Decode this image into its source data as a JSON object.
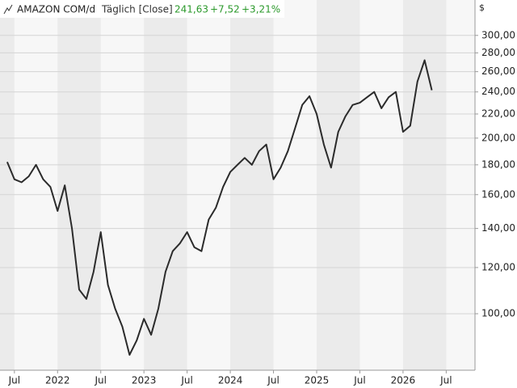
{
  "chart_data": {
    "type": "line",
    "title": "AMAZON COM/d",
    "subtitle": "Täglich [Close]",
    "annotations": [
      "241,63",
      "+7,52",
      "+3,21%"
    ],
    "y_unit": "$",
    "x": [
      "2021-06",
      "2021-07",
      "2021-08",
      "2021-09",
      "2021-10",
      "2021-11",
      "2021-12",
      "2022-01",
      "2022-02",
      "2022-03",
      "2022-04",
      "2022-05",
      "2022-06",
      "2022-07",
      "2022-08",
      "2022-09",
      "2022-10",
      "2022-11",
      "2022-12",
      "2023-01",
      "2023-02",
      "2023-03",
      "2023-04",
      "2023-05",
      "2023-06",
      "2023-07",
      "2023-08",
      "2023-09",
      "2023-10",
      "2023-11",
      "2023-12",
      "2024-01",
      "2024-02",
      "2024-03",
      "2024-04",
      "2024-05",
      "2024-06",
      "2024-07",
      "2024-08",
      "2024-09",
      "2024-10",
      "2024-11",
      "2024-12",
      "2025-01",
      "2025-02",
      "2025-03",
      "2025-04",
      "2025-05",
      "2025-06",
      "2025-07",
      "2025-08",
      "2025-09",
      "2025-10",
      "2025-11",
      "2025-12",
      "2026-01",
      "2026-02",
      "2026-03",
      "2026-04",
      "2026-05"
    ],
    "values": [
      182,
      170,
      168,
      172,
      180,
      170,
      165,
      150,
      166,
      140,
      110,
      106,
      118,
      138,
      112,
      102,
      95,
      85,
      90,
      98,
      92,
      102,
      118,
      128,
      132,
      138,
      130,
      128,
      145,
      152,
      165,
      175,
      180,
      185,
      180,
      190,
      195,
      170,
      178,
      190,
      208,
      228,
      236,
      220,
      195,
      178,
      205,
      218,
      228,
      230,
      235,
      240,
      225,
      235,
      240,
      205,
      210,
      250,
      272,
      241.63
    ],
    "color": "#2b2b2b",
    "log_y": true,
    "grid": true,
    "xlim": [
      "2021-05",
      "2026-11"
    ],
    "xticks": [
      {
        "value": "2021-07",
        "label": "Jul"
      },
      {
        "value": "2022-01",
        "label": "2022"
      },
      {
        "value": "2022-07",
        "label": "Jul"
      },
      {
        "value": "2023-01",
        "label": "2023"
      },
      {
        "value": "2023-07",
        "label": "Jul"
      },
      {
        "value": "2024-01",
        "label": "2024"
      },
      {
        "value": "2024-07",
        "label": "Jul"
      },
      {
        "value": "2025-01",
        "label": "2025"
      },
      {
        "value": "2025-07",
        "label": "Jul"
      },
      {
        "value": "2026-01",
        "label": "2026"
      },
      {
        "value": "2026-07",
        "label": "Jul"
      }
    ],
    "ylim": [
      80,
      345
    ],
    "yticks": [
      {
        "value": 100,
        "label": "100,00"
      },
      {
        "value": 120,
        "label": "120,00"
      },
      {
        "value": 140,
        "label": "140,00"
      },
      {
        "value": 160,
        "label": "160,00"
      },
      {
        "value": 180,
        "label": "180,00"
      },
      {
        "value": 200,
        "label": "200,00"
      },
      {
        "value": 220,
        "label": "220,00"
      },
      {
        "value": 240,
        "label": "240,00"
      },
      {
        "value": 260,
        "label": "260,00"
      },
      {
        "value": 280,
        "label": "280,00"
      },
      {
        "value": 300,
        "label": "300,00"
      }
    ]
  }
}
